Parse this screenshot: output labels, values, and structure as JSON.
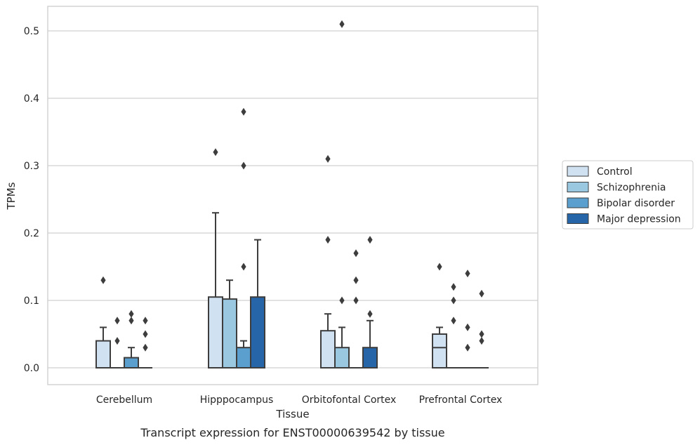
{
  "chart_data": {
    "type": "box",
    "title": "",
    "caption": "Transcript expression for ENST00000639542 by tissue",
    "xlabel": "Tissue",
    "ylabel": "TPMs",
    "ylim": [
      -0.025,
      0.535
    ],
    "yticks": [
      0.0,
      0.1,
      0.2,
      0.3,
      0.4,
      0.5
    ],
    "ytick_labels": [
      "0.0",
      "0.1",
      "0.2",
      "0.3",
      "0.4",
      "0.5"
    ],
    "grid": "horizontal",
    "legend_position": "right",
    "categories": [
      "Cerebellum",
      "Hipppocampus",
      "Orbitofontal Cortex",
      "Prefrontal Cortex"
    ],
    "series": [
      {
        "name": "Control",
        "color": "#d0e1f2",
        "boxes": [
          {
            "q1": 0.0,
            "median": 0.0,
            "q3": 0.04,
            "whisker_low": 0.0,
            "whisker_high": 0.06,
            "outliers": [
              0.13
            ]
          },
          {
            "q1": 0.0,
            "median": 0.0,
            "q3": 0.105,
            "whisker_low": 0.0,
            "whisker_high": 0.23,
            "outliers": [
              0.32
            ]
          },
          {
            "q1": 0.0,
            "median": 0.0,
            "q3": 0.055,
            "whisker_low": 0.0,
            "whisker_high": 0.08,
            "outliers": [
              0.31,
              0.19
            ]
          },
          {
            "q1": 0.0,
            "median": 0.03,
            "q3": 0.05,
            "whisker_low": 0.0,
            "whisker_high": 0.06,
            "outliers": [
              0.15
            ]
          }
        ]
      },
      {
        "name": "Schizophrenia",
        "color": "#9ac8e0",
        "boxes": [
          {
            "q1": 0.0,
            "median": 0.0,
            "q3": 0.0,
            "whisker_low": 0.0,
            "whisker_high": 0.0,
            "outliers": [
              0.07,
              0.04
            ]
          },
          {
            "q1": 0.0,
            "median": 0.0,
            "q3": 0.102,
            "whisker_low": 0.0,
            "whisker_high": 0.13,
            "outliers": []
          },
          {
            "q1": 0.0,
            "median": 0.0,
            "q3": 0.03,
            "whisker_low": 0.0,
            "whisker_high": 0.06,
            "outliers": [
              0.51,
              0.1
            ]
          },
          {
            "q1": 0.0,
            "median": 0.0,
            "q3": 0.0,
            "whisker_low": 0.0,
            "whisker_high": 0.0,
            "outliers": [
              0.12,
              0.1,
              0.07
            ]
          }
        ]
      },
      {
        "name": "Bipolar disorder",
        "color": "#5a9fcd",
        "boxes": [
          {
            "q1": 0.0,
            "median": 0.0,
            "q3": 0.015,
            "whisker_low": 0.0,
            "whisker_high": 0.03,
            "outliers": [
              0.08,
              0.07
            ]
          },
          {
            "q1": 0.0,
            "median": 0.0,
            "q3": 0.03,
            "whisker_low": 0.0,
            "whisker_high": 0.04,
            "outliers": [
              0.38,
              0.3,
              0.15
            ]
          },
          {
            "q1": 0.0,
            "median": 0.0,
            "q3": 0.0,
            "whisker_low": 0.0,
            "whisker_high": 0.0,
            "outliers": [
              0.17,
              0.13,
              0.1
            ]
          },
          {
            "q1": 0.0,
            "median": 0.0,
            "q3": 0.0,
            "whisker_low": 0.0,
            "whisker_high": 0.0,
            "outliers": [
              0.14,
              0.06,
              0.03
            ]
          }
        ]
      },
      {
        "name": "Major depression",
        "color": "#2565a8",
        "boxes": [
          {
            "q1": 0.0,
            "median": 0.0,
            "q3": 0.0,
            "whisker_low": 0.0,
            "whisker_high": 0.0,
            "outliers": [
              0.07,
              0.05,
              0.03
            ]
          },
          {
            "q1": 0.0,
            "median": 0.0,
            "q3": 0.105,
            "whisker_low": 0.0,
            "whisker_high": 0.19,
            "outliers": []
          },
          {
            "q1": 0.0,
            "median": 0.0,
            "q3": 0.03,
            "whisker_low": 0.0,
            "whisker_high": 0.07,
            "outliers": [
              0.19,
              0.08
            ]
          },
          {
            "q1": 0.0,
            "median": 0.0,
            "q3": 0.0,
            "whisker_low": 0.0,
            "whisker_high": 0.0,
            "outliers": [
              0.11,
              0.05,
              0.04
            ]
          }
        ]
      }
    ]
  }
}
